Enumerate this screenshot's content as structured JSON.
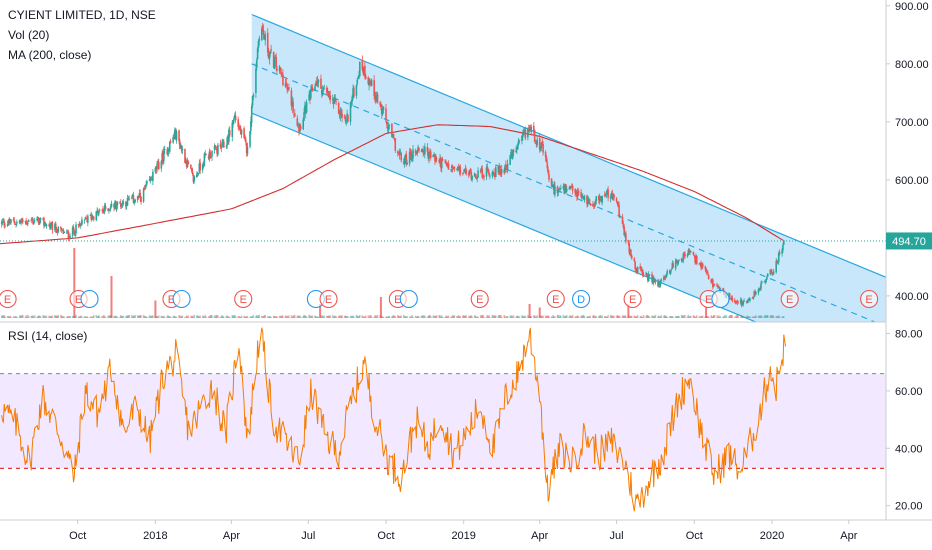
{
  "header": {
    "title": "CYIENT LIMITED, 1D, NSE",
    "indicators": [
      "Vol (20)",
      "MA (200, close)"
    ]
  },
  "rsi_panel": {
    "title": "RSI (14, close)"
  },
  "price_label": "494.70",
  "colors": {
    "up": "#26a69a",
    "down": "#ef5350",
    "ma": "#d32f2f",
    "channel": "#29a8e0",
    "channel_fill": "#bfe3fa",
    "rsi_line": "#f57c00",
    "rsi_band": "#ede0ff",
    "price_line": "#26a69a",
    "upper_dash": "#4caf50",
    "lower_dash": "#e53935"
  },
  "chart_data": [
    {
      "type": "candlestick",
      "title": "CYIENT LIMITED, 1D, NSE",
      "x_range": [
        "2017-07-01",
        "2020-05-15"
      ],
      "ylim": [
        355,
        910
      ],
      "y_ticks": [
        400,
        500,
        600,
        700,
        800,
        900
      ],
      "y_tick_labels": [
        "400.00",
        "500.00",
        "600.00",
        "700.00",
        "800.00",
        "900.00"
      ],
      "x_ticks": [
        {
          "date": "2017-10-01",
          "label": "Oct"
        },
        {
          "date": "2018-01-01",
          "label": "2018"
        },
        {
          "date": "2018-04-01",
          "label": "Apr"
        },
        {
          "date": "2018-07-01",
          "label": "Jul"
        },
        {
          "date": "2018-10-01",
          "label": "Oct"
        },
        {
          "date": "2019-01-01",
          "label": "2019"
        },
        {
          "date": "2019-04-01",
          "label": "Apr"
        },
        {
          "date": "2019-07-01",
          "label": "Jul"
        },
        {
          "date": "2019-10-01",
          "label": "Oct"
        },
        {
          "date": "2020-01-01",
          "label": "2020"
        },
        {
          "date": "2020-04-01",
          "label": "Apr"
        }
      ],
      "close_path": [
        [
          "2017-07-01",
          525
        ],
        [
          "2017-08-15",
          530
        ],
        [
          "2017-09-20",
          505
        ],
        [
          "2017-10-15",
          535
        ],
        [
          "2017-11-10",
          555
        ],
        [
          "2017-12-15",
          570
        ],
        [
          "2018-01-10",
          640
        ],
        [
          "2018-01-25",
          680
        ],
        [
          "2018-02-15",
          600
        ],
        [
          "2018-03-01",
          640
        ],
        [
          "2018-03-25",
          660
        ],
        [
          "2018-04-05",
          710
        ],
        [
          "2018-04-20",
          650
        ],
        [
          "2018-05-05",
          870
        ],
        [
          "2018-05-15",
          820
        ],
        [
          "2018-06-01",
          775
        ],
        [
          "2018-06-10",
          740
        ],
        [
          "2018-06-20",
          690
        ],
        [
          "2018-07-10",
          770
        ],
        [
          "2018-08-01",
          730
        ],
        [
          "2018-08-15",
          700
        ],
        [
          "2018-09-01",
          800
        ],
        [
          "2018-09-15",
          760
        ],
        [
          "2018-10-01",
          700
        ],
        [
          "2018-10-20",
          630
        ],
        [
          "2018-11-10",
          655
        ],
        [
          "2018-12-15",
          620
        ],
        [
          "2019-01-10",
          610
        ],
        [
          "2019-02-15",
          615
        ],
        [
          "2019-03-01",
          645
        ],
        [
          "2019-03-20",
          690
        ],
        [
          "2019-04-05",
          650
        ],
        [
          "2019-04-15",
          585
        ],
        [
          "2019-05-10",
          580
        ],
        [
          "2019-06-01",
          560
        ],
        [
          "2019-06-20",
          575
        ],
        [
          "2019-07-01",
          565
        ],
        [
          "2019-07-10",
          505
        ],
        [
          "2019-07-25",
          445
        ],
        [
          "2019-08-20",
          420
        ],
        [
          "2019-09-10",
          460
        ],
        [
          "2019-09-25",
          475
        ],
        [
          "2019-10-10",
          450
        ],
        [
          "2019-10-25",
          415
        ],
        [
          "2019-11-15",
          395
        ],
        [
          "2019-12-01",
          385
        ],
        [
          "2019-12-20",
          420
        ],
        [
          "2020-01-05",
          450
        ],
        [
          "2020-01-15",
          495
        ]
      ],
      "last_price": 494.7,
      "ma200_path": [
        [
          "2017-07-01",
          490
        ],
        [
          "2017-10-01",
          500
        ],
        [
          "2018-01-01",
          525
        ],
        [
          "2018-04-01",
          550
        ],
        [
          "2018-06-01",
          585
        ],
        [
          "2018-08-01",
          635
        ],
        [
          "2018-10-01",
          680
        ],
        [
          "2018-12-01",
          695
        ],
        [
          "2019-02-01",
          692
        ],
        [
          "2019-04-01",
          675
        ],
        [
          "2019-06-01",
          645
        ],
        [
          "2019-08-01",
          615
        ],
        [
          "2019-10-01",
          580
        ],
        [
          "2019-12-01",
          535
        ],
        [
          "2020-01-15",
          495
        ]
      ],
      "channel": {
        "upper": [
          [
            "2018-04-25",
            885
          ],
          [
            "2020-05-15",
            432
          ]
        ],
        "lower": [
          [
            "2018-04-25",
            715
          ],
          [
            "2020-05-15",
            262
          ]
        ],
        "mid": [
          [
            "2018-04-25",
            800
          ],
          [
            "2020-05-15",
            347
          ]
        ]
      },
      "volume_spikes": [
        [
          "2017-09-27",
          1.0
        ],
        [
          "2017-11-10",
          0.6
        ],
        [
          "2018-01-01",
          0.25
        ],
        [
          "2018-07-15",
          0.2
        ],
        [
          "2018-09-25",
          0.3
        ],
        [
          "2019-03-20",
          0.2
        ],
        [
          "2019-04-01",
          0.15
        ],
        [
          "2019-07-15",
          0.2
        ],
        [
          "2019-10-15",
          0.15
        ]
      ],
      "events": [
        {
          "date": "2017-07-10",
          "label": "E"
        },
        {
          "date": "2017-10-02",
          "label": "E"
        },
        {
          "date": "2017-10-15",
          "label": ""
        },
        {
          "date": "2018-01-20",
          "label": "E"
        },
        {
          "date": "2018-02-01",
          "label": ""
        },
        {
          "date": "2018-04-15",
          "label": "E"
        },
        {
          "date": "2018-07-10",
          "label": ""
        },
        {
          "date": "2018-07-25",
          "label": "E"
        },
        {
          "date": "2018-10-15",
          "label": "E"
        },
        {
          "date": "2018-10-28",
          "label": ""
        },
        {
          "date": "2019-01-20",
          "label": "E"
        },
        {
          "date": "2019-04-20",
          "label": "E"
        },
        {
          "date": "2019-05-20",
          "label": "D"
        },
        {
          "date": "2019-07-20",
          "label": "E"
        },
        {
          "date": "2019-10-18",
          "label": "E"
        },
        {
          "date": "2019-11-01",
          "label": ""
        },
        {
          "date": "2020-01-22",
          "label": "E"
        },
        {
          "date": "2020-04-25",
          "label": "E"
        }
      ]
    },
    {
      "type": "line",
      "title": "RSI (14, close)",
      "ylim": [
        15,
        84
      ],
      "y_ticks": [
        20,
        40,
        60,
        80
      ],
      "y_tick_labels": [
        "20.00",
        "40.00",
        "60.00",
        "80.00"
      ],
      "upper_band": 66,
      "lower_band": 33,
      "series": [
        {
          "values": [
            [
              "2017-07-01",
              55
            ],
            [
              "2017-07-20",
              48
            ],
            [
              "2017-08-05",
              35
            ],
            [
              "2017-08-20",
              58
            ],
            [
              "2017-09-10",
              45
            ],
            [
              "2017-09-27",
              30
            ],
            [
              "2017-10-10",
              60
            ],
            [
              "2017-10-25",
              52
            ],
            [
              "2017-11-10",
              68
            ],
            [
              "2017-11-25",
              45
            ],
            [
              "2017-12-10",
              55
            ],
            [
              "2017-12-25",
              42
            ],
            [
              "2018-01-10",
              65
            ],
            [
              "2018-01-25",
              72
            ],
            [
              "2018-02-10",
              45
            ],
            [
              "2018-02-25",
              55
            ],
            [
              "2018-03-10",
              62
            ],
            [
              "2018-03-25",
              45
            ],
            [
              "2018-04-10",
              78
            ],
            [
              "2018-04-20",
              42
            ],
            [
              "2018-05-05",
              82
            ],
            [
              "2018-05-20",
              50
            ],
            [
              "2018-06-05",
              42
            ],
            [
              "2018-06-20",
              35
            ],
            [
              "2018-07-05",
              60
            ],
            [
              "2018-07-20",
              45
            ],
            [
              "2018-08-05",
              38
            ],
            [
              "2018-08-20",
              55
            ],
            [
              "2018-09-05",
              70
            ],
            [
              "2018-09-20",
              48
            ],
            [
              "2018-10-05",
              35
            ],
            [
              "2018-10-20",
              30
            ],
            [
              "2018-11-05",
              50
            ],
            [
              "2018-11-20",
              40
            ],
            [
              "2018-12-05",
              52
            ],
            [
              "2018-12-20",
              38
            ],
            [
              "2019-01-05",
              45
            ],
            [
              "2019-01-20",
              55
            ],
            [
              "2019-02-05",
              40
            ],
            [
              "2019-02-20",
              58
            ],
            [
              "2019-03-05",
              65
            ],
            [
              "2019-03-20",
              80
            ],
            [
              "2019-04-01",
              60
            ],
            [
              "2019-04-10",
              25
            ],
            [
              "2019-04-25",
              40
            ],
            [
              "2019-05-10",
              35
            ],
            [
              "2019-05-25",
              45
            ],
            [
              "2019-06-10",
              38
            ],
            [
              "2019-06-25",
              42
            ],
            [
              "2019-07-10",
              35
            ],
            [
              "2019-07-25",
              20
            ],
            [
              "2019-08-10",
              30
            ],
            [
              "2019-08-25",
              38
            ],
            [
              "2019-09-10",
              55
            ],
            [
              "2019-09-25",
              65
            ],
            [
              "2019-10-10",
              45
            ],
            [
              "2019-10-25",
              30
            ],
            [
              "2019-11-10",
              38
            ],
            [
              "2019-11-25",
              32
            ],
            [
              "2019-12-10",
              45
            ],
            [
              "2019-12-20",
              55
            ],
            [
              "2019-12-30",
              68
            ],
            [
              "2020-01-05",
              60
            ],
            [
              "2020-01-12",
              72
            ],
            [
              "2020-01-18",
              78
            ]
          ]
        }
      ]
    }
  ]
}
